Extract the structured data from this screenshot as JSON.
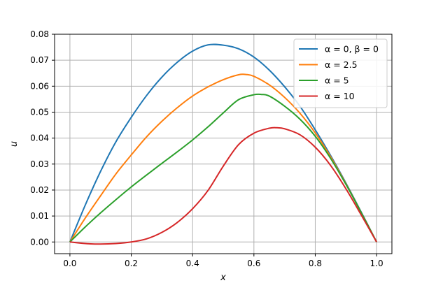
{
  "chart_data": {
    "type": "line",
    "title": "",
    "xlabel": "x",
    "ylabel": "u",
    "xlim": [
      -0.05,
      1.05
    ],
    "ylim": [
      -0.0045,
      0.08
    ],
    "xticks": [
      0.0,
      0.2,
      0.4,
      0.6,
      0.8,
      1.0
    ],
    "xtick_labels": [
      "0.0",
      "0.2",
      "0.4",
      "0.6",
      "0.8",
      "1.0"
    ],
    "yticks": [
      0.0,
      0.01,
      0.02,
      0.03,
      0.04,
      0.05,
      0.06,
      0.07,
      0.08
    ],
    "ytick_labels": [
      "0.00",
      "0.01",
      "0.02",
      "0.03",
      "0.04",
      "0.05",
      "0.06",
      "0.07",
      "0.08"
    ],
    "grid": true,
    "legend_position": "top-right",
    "series": [
      {
        "name": "α = 0, β = 0",
        "color": "#1f77b4",
        "x": [
          0.0,
          0.05,
          0.1,
          0.15,
          0.2,
          0.25,
          0.3,
          0.35,
          0.4,
          0.45,
          0.5,
          0.55,
          0.6,
          0.65,
          0.7,
          0.75,
          0.8,
          0.85,
          0.9,
          0.95,
          1.0
        ],
        "y": [
          0.0,
          0.0142,
          0.0272,
          0.0386,
          0.048,
          0.0564,
          0.0635,
          0.0692,
          0.0735,
          0.0759,
          0.0758,
          0.0744,
          0.0712,
          0.0662,
          0.0598,
          0.0523,
          0.0432,
          0.0333,
          0.0227,
          0.0115,
          0.0
        ]
      },
      {
        "name": "α = 2.5",
        "color": "#ff7f0e",
        "x": [
          0.0,
          0.05,
          0.1,
          0.15,
          0.2,
          0.25,
          0.3,
          0.35,
          0.4,
          0.45,
          0.5,
          0.55,
          0.575,
          0.6,
          0.65,
          0.7,
          0.75,
          0.8,
          0.85,
          0.9,
          0.95,
          1.0
        ],
        "y": [
          0.0,
          0.0092,
          0.0178,
          0.0262,
          0.0335,
          0.0405,
          0.0465,
          0.0517,
          0.0562,
          0.0597,
          0.0625,
          0.0644,
          0.0645,
          0.0638,
          0.0605,
          0.0557,
          0.0496,
          0.042,
          0.0328,
          0.0224,
          0.0113,
          0.0
        ]
      },
      {
        "name": "α = 5",
        "color": "#2ca02c",
        "x": [
          0.0,
          0.05,
          0.1,
          0.15,
          0.2,
          0.25,
          0.3,
          0.35,
          0.4,
          0.45,
          0.5,
          0.55,
          0.6,
          0.625,
          0.65,
          0.7,
          0.75,
          0.8,
          0.85,
          0.9,
          0.95,
          1.0
        ],
        "y": [
          0.0,
          0.0058,
          0.0112,
          0.0163,
          0.0212,
          0.0258,
          0.0303,
          0.0347,
          0.0393,
          0.0443,
          0.0497,
          0.0548,
          0.0567,
          0.0568,
          0.0562,
          0.0523,
          0.0473,
          0.0407,
          0.0322,
          0.0222,
          0.0113,
          0.0
        ]
      },
      {
        "name": "α = 10",
        "color": "#d62728",
        "x": [
          0.0,
          0.05,
          0.1,
          0.15,
          0.2,
          0.25,
          0.3,
          0.35,
          0.4,
          0.45,
          0.5,
          0.55,
          0.6,
          0.65,
          0.675,
          0.7,
          0.75,
          0.8,
          0.85,
          0.9,
          0.95,
          1.0
        ],
        "y": [
          0.0,
          -0.0006,
          -0.0008,
          -0.0006,
          0.0,
          0.0012,
          0.0037,
          0.0075,
          0.0128,
          0.0198,
          0.0292,
          0.0375,
          0.0419,
          0.0438,
          0.044,
          0.0436,
          0.0413,
          0.0365,
          0.0295,
          0.0205,
          0.0104,
          0.0
        ]
      }
    ]
  }
}
